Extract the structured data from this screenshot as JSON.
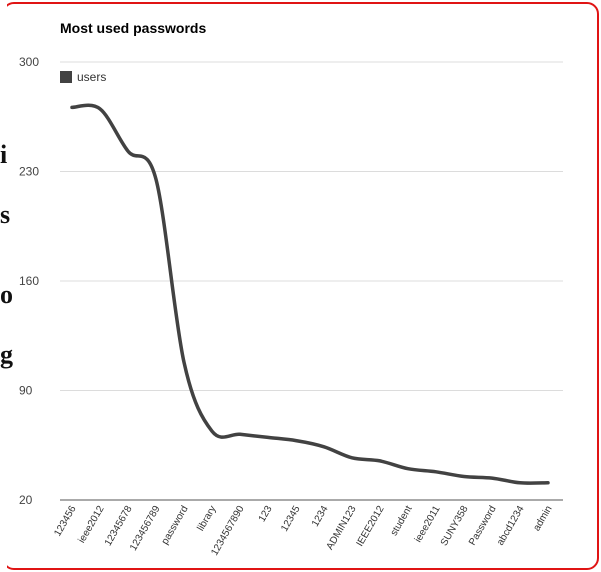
{
  "page": {
    "edge_fragments": [
      "i",
      "s",
      "o",
      "g"
    ]
  },
  "chart_data": {
    "type": "line",
    "title": "Most used passwords",
    "legend": {
      "entries": [
        "users"
      ],
      "placement": "top-left"
    },
    "categories": [
      "123456",
      "ieee2012",
      "12345678",
      "123456789",
      "password",
      "library",
      "1234567890",
      "123",
      "12345",
      "1234",
      "ADMIN123",
      "IEEE2012",
      "student",
      "ieee2011",
      "SUNY358",
      "Password",
      "abcd1234",
      "admin"
    ],
    "series": [
      {
        "name": "users",
        "color": "#424242",
        "values": [
          271,
          270,
          243,
          225,
          108,
          64,
          62,
          60,
          58,
          54,
          47,
          45,
          40,
          38,
          35,
          34,
          31,
          31
        ]
      }
    ],
    "ylim": [
      20,
      300
    ],
    "yticks": [
      20,
      90,
      160,
      230,
      300
    ],
    "grid": true,
    "xlabel": "",
    "ylabel": ""
  }
}
